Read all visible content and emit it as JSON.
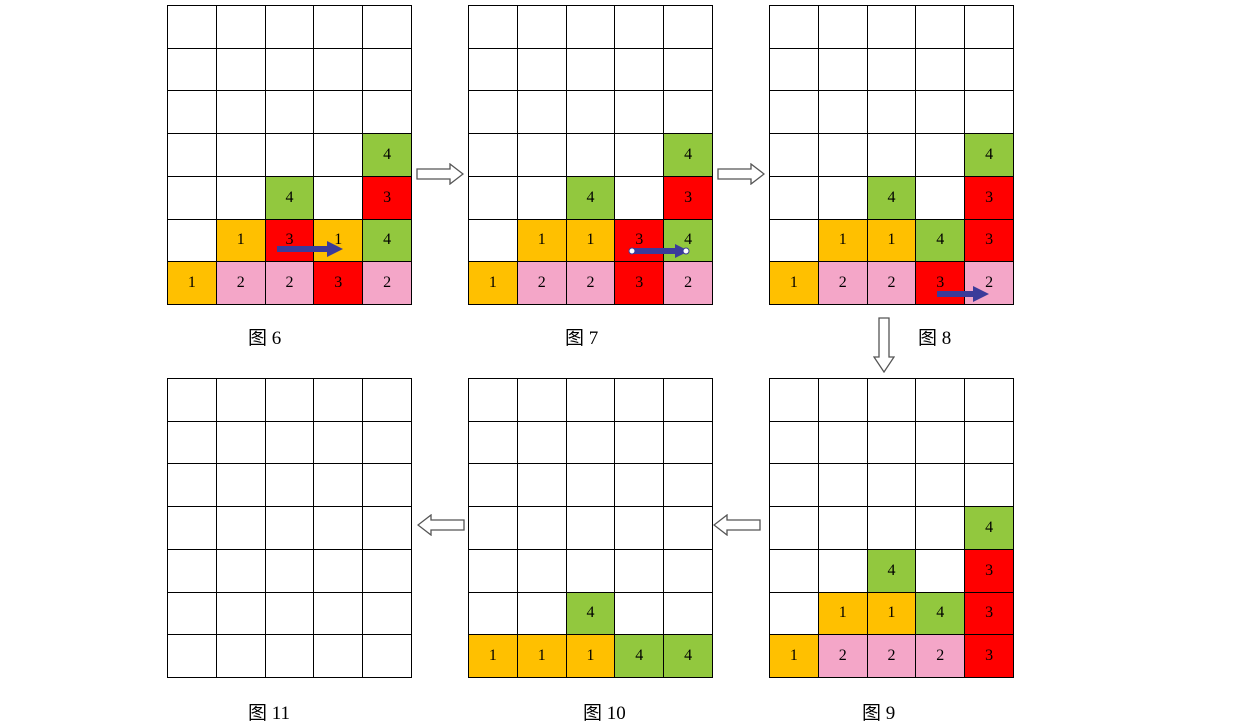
{
  "figures": [
    {
      "id": "fig6",
      "caption": "图 6",
      "rows": [
        [
          0,
          0,
          0,
          0,
          0
        ],
        [
          0,
          0,
          0,
          0,
          0
        ],
        [
          0,
          0,
          0,
          0,
          0
        ],
        [
          0,
          0,
          0,
          0,
          4
        ],
        [
          0,
          0,
          4,
          0,
          3
        ],
        [
          0,
          1,
          3,
          1,
          4
        ],
        [
          1,
          2,
          2,
          3,
          2
        ]
      ]
    },
    {
      "id": "fig7",
      "caption": "图 7",
      "rows": [
        [
          0,
          0,
          0,
          0,
          0
        ],
        [
          0,
          0,
          0,
          0,
          0
        ],
        [
          0,
          0,
          0,
          0,
          0
        ],
        [
          0,
          0,
          0,
          0,
          4
        ],
        [
          0,
          0,
          4,
          0,
          3
        ],
        [
          0,
          1,
          1,
          3,
          4
        ],
        [
          1,
          2,
          2,
          3,
          2
        ]
      ]
    },
    {
      "id": "fig8",
      "caption": "图 8",
      "rows": [
        [
          0,
          0,
          0,
          0,
          0
        ],
        [
          0,
          0,
          0,
          0,
          0
        ],
        [
          0,
          0,
          0,
          0,
          0
        ],
        [
          0,
          0,
          0,
          0,
          4
        ],
        [
          0,
          0,
          4,
          0,
          3
        ],
        [
          0,
          1,
          1,
          4,
          3
        ],
        [
          1,
          2,
          2,
          3,
          2
        ]
      ]
    },
    {
      "id": "fig9",
      "caption": "图 9",
      "rows": [
        [
          0,
          0,
          0,
          0,
          0
        ],
        [
          0,
          0,
          0,
          0,
          0
        ],
        [
          0,
          0,
          0,
          0,
          0
        ],
        [
          0,
          0,
          0,
          0,
          4
        ],
        [
          0,
          0,
          4,
          0,
          3
        ],
        [
          0,
          1,
          1,
          4,
          3
        ],
        [
          1,
          2,
          2,
          2,
          3
        ]
      ]
    },
    {
      "id": "fig10",
      "caption": "图 10",
      "rows": [
        [
          0,
          0,
          0,
          0,
          0
        ],
        [
          0,
          0,
          0,
          0,
          0
        ],
        [
          0,
          0,
          0,
          0,
          0
        ],
        [
          0,
          0,
          0,
          0,
          0
        ],
        [
          0,
          0,
          0,
          0,
          0
        ],
        [
          0,
          0,
          4,
          0,
          0
        ],
        [
          1,
          1,
          1,
          4,
          4
        ]
      ]
    },
    {
      "id": "fig11",
      "caption": "图 11",
      "rows": [
        [
          0,
          0,
          0,
          0,
          0
        ],
        [
          0,
          0,
          0,
          0,
          0
        ],
        [
          0,
          0,
          0,
          0,
          0
        ],
        [
          0,
          0,
          0,
          0,
          0
        ],
        [
          0,
          0,
          0,
          0,
          0
        ],
        [
          0,
          0,
          0,
          0,
          0
        ],
        [
          0,
          0,
          0,
          0,
          0
        ]
      ]
    }
  ],
  "colors": {
    "1": "#ffc000",
    "2": "#f4a6c8",
    "3": "#ff0000",
    "4": "#92c83e",
    "move_arrow": "#3b3b9a"
  }
}
